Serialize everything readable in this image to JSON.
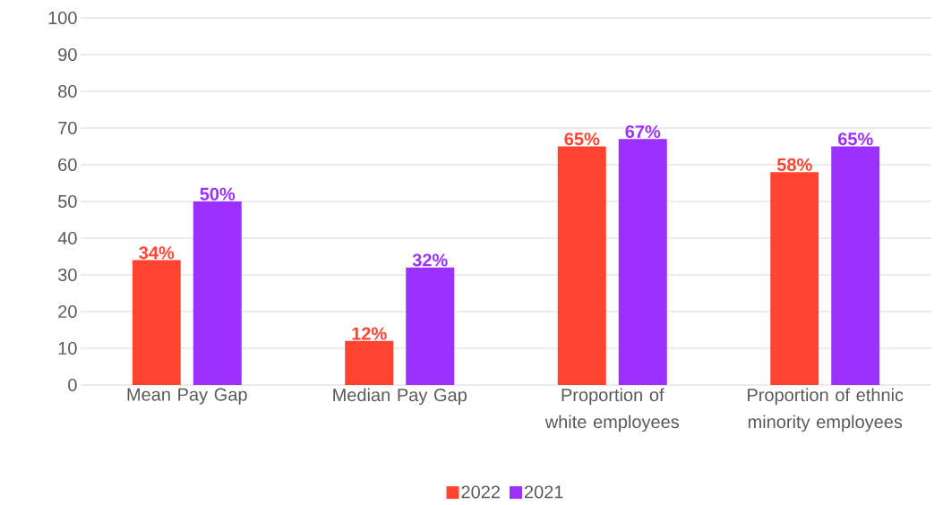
{
  "chart_data": {
    "type": "bar",
    "categories": [
      "Mean Pay Gap",
      "Median Pay Gap",
      "Proportion of white employees",
      "Proportion of ethnic minority employees"
    ],
    "series": [
      {
        "name": "2022",
        "color": "#ff4331",
        "values": [
          34,
          12,
          65,
          58
        ],
        "value_labels": [
          "34%",
          "12%",
          "65%",
          "58%"
        ]
      },
      {
        "name": "2021",
        "color": "#9b30ff",
        "values": [
          50,
          32,
          67,
          65
        ],
        "value_labels": [
          "50%",
          "32%",
          "67%",
          "65%"
        ]
      }
    ],
    "ylim": [
      0,
      100
    ],
    "yticks": [
      0,
      10,
      20,
      30,
      40,
      50,
      60,
      70,
      80,
      90,
      100
    ],
    "grid": "y",
    "legend": "bottom"
  }
}
